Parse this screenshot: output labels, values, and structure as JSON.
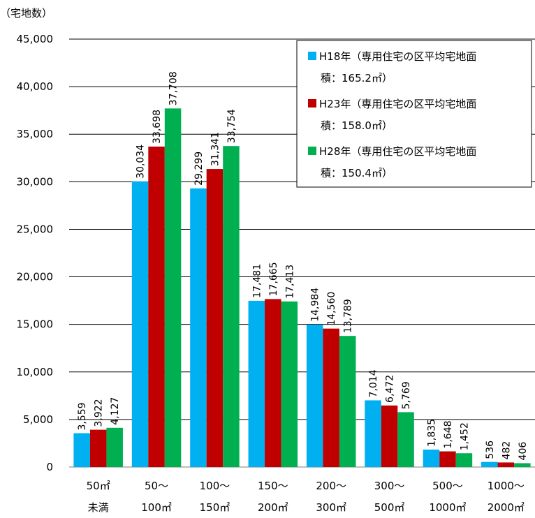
{
  "chart_data": {
    "type": "bar",
    "ylabel": "（宅地数）",
    "ylim": [
      0,
      45000
    ],
    "yticks": [
      "0",
      "5,000",
      "10,000",
      "15,000",
      "20,000",
      "25,000",
      "30,000",
      "35,000",
      "40,000",
      "45,000"
    ],
    "grid": true,
    "legend_position": "top-right",
    "categories": [
      {
        "line1": "50㎡",
        "line2": "未満"
      },
      {
        "line1": "50～",
        "line2": "100㎡"
      },
      {
        "line1": "100～",
        "line2": "150㎡"
      },
      {
        "line1": "150～",
        "line2": "200㎡"
      },
      {
        "line1": "200～",
        "line2": "300㎡"
      },
      {
        "line1": "300～",
        "line2": "500㎡"
      },
      {
        "line1": "500～",
        "line2": "1000㎡"
      },
      {
        "line1": "1000～",
        "line2": "2000㎡"
      }
    ],
    "series": [
      {
        "name_line1": "H18年（専用住宅の区平均宅地面",
        "name_line2": "積：165.2㎡）",
        "color": "#00B0F0",
        "values": [
          3559,
          30034,
          29299,
          17481,
          14984,
          7014,
          1835,
          536
        ],
        "labels": [
          "3,559",
          "30,034",
          "29,299",
          "17,481",
          "14,984",
          "7,014",
          "1,835",
          "536"
        ]
      },
      {
        "name_line1": "H23年（専用住宅の区平均宅地面",
        "name_line2": "積：158.0㎡）",
        "color": "#C00000",
        "values": [
          3922,
          33698,
          31341,
          17665,
          14560,
          6472,
          1648,
          482
        ],
        "labels": [
          "3,922",
          "33,698",
          "31,341",
          "17,665",
          "14,560",
          "6,472",
          "1,648",
          "482"
        ]
      },
      {
        "name_line1": "H28年（専用住宅の区平均宅地面",
        "name_line2": "積：150.4㎡）",
        "color": "#00B050",
        "values": [
          4127,
          37708,
          33754,
          17413,
          13789,
          5769,
          1452,
          406
        ],
        "labels": [
          "4,127",
          "37,708",
          "33,754",
          "17,413",
          "13,789",
          "5,769",
          "1,452",
          "406"
        ]
      }
    ]
  }
}
